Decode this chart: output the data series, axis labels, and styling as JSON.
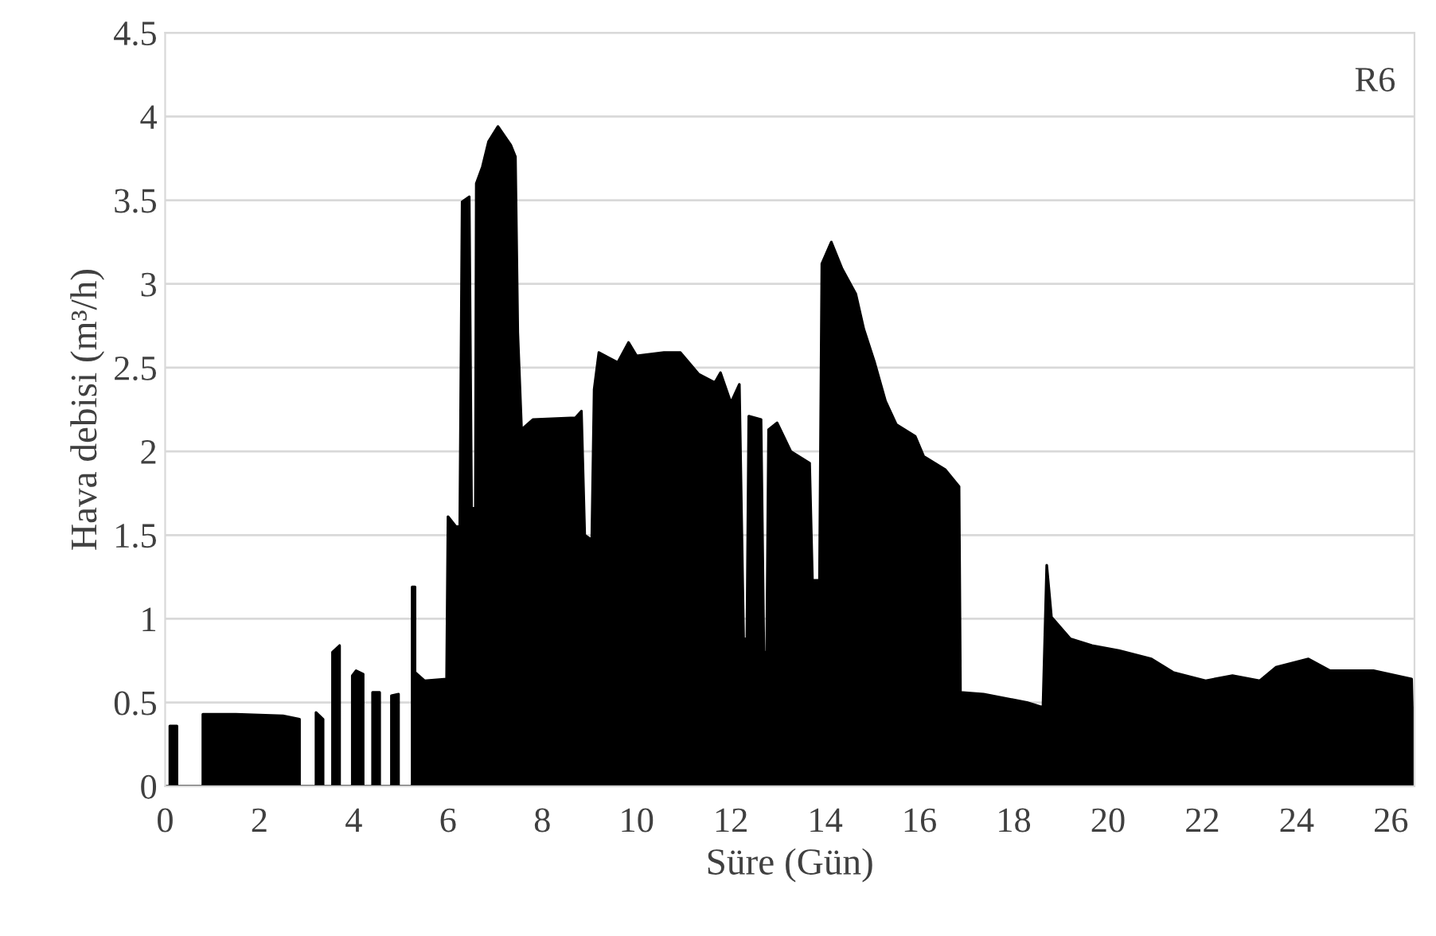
{
  "chart_data": {
    "type": "area",
    "xlabel": "Süre (Gün)",
    "ylabel": "Hava debisi (m³/h)",
    "annotations": [
      "R6"
    ],
    "xlim": [
      0,
      26.5
    ],
    "xticks": [
      0,
      2,
      4,
      6,
      8,
      10,
      12,
      14,
      16,
      18,
      20,
      22,
      24,
      26
    ],
    "ylim": [
      0,
      4.5
    ],
    "yticks": [
      0,
      0.5,
      1,
      1.5,
      2,
      2.5,
      3,
      3.5,
      4,
      4.5
    ],
    "grid": "y",
    "series": [
      {
        "color": "#000000",
        "x": [
          0,
          0.1,
          0.1,
          0.25,
          0.25,
          0.8,
          0.8,
          1.5,
          2.5,
          2.85,
          2.85,
          3.2,
          3.2,
          3.35,
          3.35,
          3.55,
          3.55,
          3.7,
          3.7,
          3.97,
          3.97,
          4.05,
          4.2,
          4.2,
          4.4,
          4.4,
          4.55,
          4.55,
          4.8,
          4.8,
          4.95,
          4.95,
          5.24,
          5.24,
          5.3,
          5.3,
          5.5,
          5.97,
          6.0,
          6.17,
          6.25,
          6.3,
          6.45,
          6.5,
          6.58,
          6.6,
          6.73,
          6.86,
          7.06,
          7.33,
          7.43,
          7.48,
          7.56,
          7.8,
          8.7,
          8.83,
          8.9,
          9.05,
          9.1,
          9.2,
          9.6,
          9.83,
          10.0,
          10.58,
          10.93,
          11.32,
          11.66,
          11.78,
          12.0,
          12.18,
          12.27,
          12.34,
          12.38,
          12.64,
          12.7,
          12.76,
          12.8,
          12.98,
          13.27,
          13.67,
          13.73,
          13.88,
          13.93,
          14.13,
          14.36,
          14.65,
          14.82,
          15.05,
          15.28,
          15.51,
          15.91,
          16.09,
          16.55,
          16.84,
          16.87,
          17.36,
          18.28,
          18.62,
          18.7,
          18.8,
          19.2,
          19.66,
          20.23,
          20.92,
          21.38,
          22.07,
          22.64,
          23.22,
          23.56,
          24.25,
          24.71,
          25.63,
          26.44,
          26.5
        ],
        "values": [
          0,
          0,
          0.36,
          0.36,
          0,
          0,
          0.43,
          0.43,
          0.42,
          0.4,
          0,
          0,
          0.44,
          0.4,
          0,
          0,
          0.8,
          0.84,
          0,
          0,
          0.66,
          0.69,
          0.67,
          0,
          0,
          0.56,
          0.56,
          0,
          0,
          0.54,
          0.55,
          0,
          0,
          1.19,
          1.19,
          0.68,
          0.63,
          0.64,
          1.61,
          1.55,
          1.55,
          3.49,
          3.52,
          1.66,
          1.66,
          3.6,
          3.7,
          3.85,
          3.94,
          3.83,
          3.76,
          2.71,
          2.13,
          2.19,
          2.2,
          2.24,
          1.5,
          1.47,
          2.37,
          2.59,
          2.53,
          2.65,
          2.57,
          2.59,
          2.59,
          2.46,
          2.41,
          2.47,
          2.29,
          2.4,
          0.88,
          0.88,
          2.21,
          2.19,
          0.8,
          0.8,
          2.13,
          2.17,
          2.0,
          1.93,
          1.23,
          1.23,
          3.12,
          3.25,
          3.09,
          2.94,
          2.73,
          2.53,
          2.3,
          2.16,
          2.09,
          1.97,
          1.89,
          1.79,
          0.56,
          0.55,
          0.5,
          0.47,
          1.32,
          1.01,
          0.88,
          0.84,
          0.81,
          0.76,
          0.68,
          0.63,
          0.66,
          0.63,
          0.71,
          0.76,
          0.69,
          0.69,
          0.64,
          0
        ]
      }
    ]
  }
}
